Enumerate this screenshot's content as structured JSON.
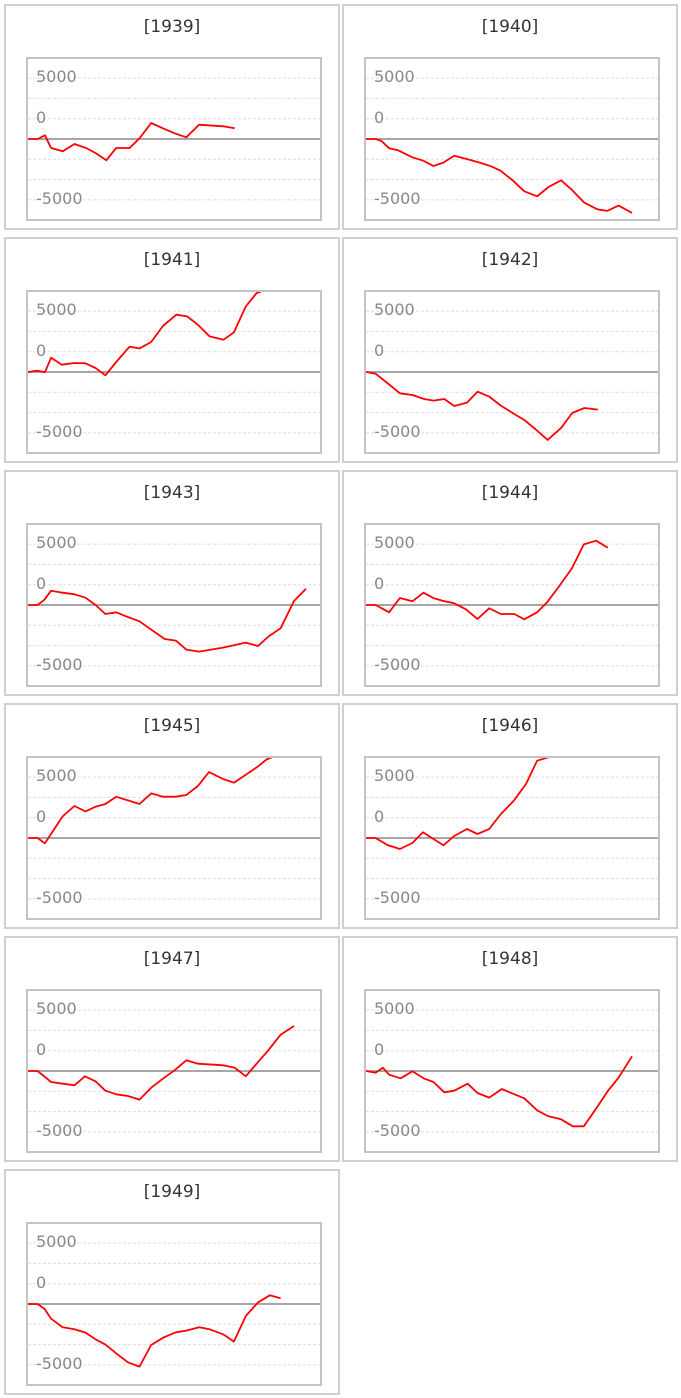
{
  "colors": {
    "line": "#ff0000",
    "zero_line": "#888888",
    "grid": "#dddddd",
    "frame": "#c4c4c4"
  },
  "chart_data": {
    "type": "line",
    "layout": "small-multiples, 2 columns",
    "y_tick_labels": [
      "5000",
      "0",
      "-5000"
    ],
    "ylim": [
      -6560,
      6560
    ],
    "xlim": [
      0,
      100
    ],
    "grid": true,
    "panels": [
      {
        "title": "[1939]",
        "points": [
          [
            0,
            0
          ],
          [
            3.3,
            0
          ],
          [
            5.8,
            300
          ],
          [
            7.9,
            -737
          ],
          [
            11.9,
            -1010
          ],
          [
            15.9,
            -410
          ],
          [
            19.9,
            -737
          ],
          [
            23.1,
            -1147
          ],
          [
            26.8,
            -1747
          ],
          [
            30.2,
            -737
          ],
          [
            34.8,
            -737
          ],
          [
            38.2,
            55
          ],
          [
            42.2,
            1310
          ],
          [
            46.2,
            874
          ],
          [
            50.2,
            464
          ],
          [
            54.2,
            137
          ],
          [
            58.6,
            1174
          ],
          [
            66.8,
            1037
          ],
          [
            70.8,
            874
          ]
        ]
      },
      {
        "title": "[1940]",
        "points": [
          [
            0,
            0
          ],
          [
            3.3,
            0
          ],
          [
            5.3,
            -164
          ],
          [
            7.9,
            -764
          ],
          [
            11,
            -928
          ],
          [
            15.9,
            -1502
          ],
          [
            19.6,
            -1775
          ],
          [
            23.1,
            -2211
          ],
          [
            26.5,
            -1938
          ],
          [
            30.2,
            -1365
          ],
          [
            34.8,
            -1665
          ],
          [
            39.4,
            -1966
          ],
          [
            42.8,
            -2239
          ],
          [
            46,
            -2594
          ],
          [
            50.2,
            -3385
          ],
          [
            54.2,
            -4286
          ],
          [
            58.6,
            -4696
          ],
          [
            62.5,
            -3931
          ],
          [
            66.8,
            -3385
          ],
          [
            70.3,
            -4122
          ],
          [
            74.6,
            -5187
          ],
          [
            79.2,
            -5760
          ],
          [
            82.6,
            -5897
          ],
          [
            86.5,
            -5460
          ],
          [
            91.1,
            -6061
          ]
        ]
      },
      {
        "title": "[1941]",
        "points": [
          [
            0,
            0
          ],
          [
            3.3,
            109
          ],
          [
            5.8,
            -27
          ],
          [
            7.9,
            1174
          ],
          [
            11.6,
            600
          ],
          [
            15.9,
            737
          ],
          [
            19.7,
            710
          ],
          [
            23.1,
            328
          ],
          [
            26.5,
            -273
          ],
          [
            30.2,
            819
          ],
          [
            34.8,
            2075
          ],
          [
            38.2,
            1938
          ],
          [
            42.2,
            2457
          ],
          [
            46.2,
            3767
          ],
          [
            50.8,
            4696
          ],
          [
            54.5,
            4559
          ],
          [
            58.2,
            3877
          ],
          [
            62.2,
            2921
          ],
          [
            67,
            2648
          ],
          [
            70.5,
            3249
          ],
          [
            74.6,
            5378
          ],
          [
            78.3,
            6470
          ],
          [
            82.8,
            6880
          ],
          [
            87,
            7016
          ]
        ]
      },
      {
        "title": "[1942]",
        "points": [
          [
            0,
            0
          ],
          [
            3.3,
            -137
          ],
          [
            7.3,
            -901
          ],
          [
            11.6,
            -1747
          ],
          [
            15.9,
            -1884
          ],
          [
            19.9,
            -2211
          ],
          [
            23.1,
            -2348
          ],
          [
            26.8,
            -2211
          ],
          [
            30.2,
            -2785
          ],
          [
            34.6,
            -2512
          ],
          [
            38.2,
            -1611
          ],
          [
            42.2,
            -2020
          ],
          [
            46.2,
            -2757
          ],
          [
            50.2,
            -3358
          ],
          [
            54.2,
            -3931
          ],
          [
            58.2,
            -4723
          ],
          [
            62.2,
            -5569
          ],
          [
            66.8,
            -4586
          ],
          [
            70.6,
            -3358
          ],
          [
            74.8,
            -2948
          ],
          [
            79.4,
            -3085
          ]
        ]
      },
      {
        "title": "[1943]",
        "points": [
          [
            0,
            0
          ],
          [
            3.3,
            0
          ],
          [
            5.6,
            437
          ],
          [
            7.9,
            1174
          ],
          [
            11.9,
            1010
          ],
          [
            15.9,
            874
          ],
          [
            19.7,
            601
          ],
          [
            23.1,
            0
          ],
          [
            26.5,
            -737
          ],
          [
            30.2,
            -601
          ],
          [
            34.2,
            -983
          ],
          [
            38.2,
            -1338
          ],
          [
            42.2,
            -2020
          ],
          [
            46.8,
            -2785
          ],
          [
            50.6,
            -2921
          ],
          [
            54.2,
            -3658
          ],
          [
            58.6,
            -3822
          ],
          [
            66.8,
            -3494
          ],
          [
            74.6,
            -3085
          ],
          [
            78.8,
            -3358
          ],
          [
            82.3,
            -2594
          ],
          [
            86.5,
            -1911
          ],
          [
            91.1,
            328
          ],
          [
            95.2,
            1338
          ]
        ]
      },
      {
        "title": "[1944]",
        "points": [
          [
            0,
            0
          ],
          [
            3.3,
            0
          ],
          [
            7.9,
            -601
          ],
          [
            11.6,
            573
          ],
          [
            15.9,
            300
          ],
          [
            19.7,
            1010
          ],
          [
            23.3,
            546
          ],
          [
            26.5,
            328
          ],
          [
            30.2,
            137
          ],
          [
            34.2,
            -355
          ],
          [
            38.2,
            -1147
          ],
          [
            42.2,
            -273
          ],
          [
            46.2,
            -737
          ],
          [
            50.8,
            -737
          ],
          [
            54.2,
            -1174
          ],
          [
            58.6,
            -601
          ],
          [
            62.2,
            273
          ],
          [
            66.2,
            1556
          ],
          [
            70.5,
            3003
          ],
          [
            74.6,
            4969
          ],
          [
            78.8,
            5269
          ],
          [
            82.8,
            4696
          ]
        ]
      },
      {
        "title": "[1945]",
        "points": [
          [
            0,
            0
          ],
          [
            3.3,
            0
          ],
          [
            5.8,
            -437
          ],
          [
            11.9,
            1775
          ],
          [
            15.9,
            2621
          ],
          [
            19.7,
            2184
          ],
          [
            23.1,
            2566
          ],
          [
            26.5,
            2785
          ],
          [
            30.2,
            3385
          ],
          [
            38.2,
            2785
          ],
          [
            42.2,
            3658
          ],
          [
            46.2,
            3385
          ],
          [
            50.6,
            3385
          ],
          [
            54.2,
            3522
          ],
          [
            58.2,
            4259
          ],
          [
            62,
            5405
          ],
          [
            66.8,
            4832
          ],
          [
            70.5,
            4532
          ],
          [
            74.6,
            5187
          ],
          [
            78.3,
            5788
          ],
          [
            81.9,
            6470
          ],
          [
            86.8,
            6880
          ]
        ]
      },
      {
        "title": "[1946]",
        "points": [
          [
            0,
            0
          ],
          [
            3.3,
            0
          ],
          [
            7.3,
            -573
          ],
          [
            11.6,
            -901
          ],
          [
            15.9,
            -410
          ],
          [
            19.5,
            464
          ],
          [
            23.1,
            -82
          ],
          [
            26.5,
            -601
          ],
          [
            30.2,
            164
          ],
          [
            34.6,
            737
          ],
          [
            38.2,
            328
          ],
          [
            42.2,
            737
          ],
          [
            46.2,
            1966
          ],
          [
            50.6,
            3058
          ],
          [
            54.8,
            4423
          ],
          [
            58.6,
            6334
          ],
          [
            62.2,
            6600
          ],
          [
            66.8,
            7016
          ],
          [
            95.2,
            7016
          ]
        ]
      },
      {
        "title": "[1947]",
        "points": [
          [
            0,
            0
          ],
          [
            3.3,
            0
          ],
          [
            7.9,
            -901
          ],
          [
            11.9,
            -1037
          ],
          [
            15.9,
            -1174
          ],
          [
            19.5,
            -437
          ],
          [
            23.1,
            -846
          ],
          [
            26.5,
            -1611
          ],
          [
            30.2,
            -1911
          ],
          [
            34.2,
            -2048
          ],
          [
            38.2,
            -2348
          ],
          [
            42.2,
            -1365
          ],
          [
            46.2,
            -628
          ],
          [
            50.2,
            55
          ],
          [
            54.2,
            874
          ],
          [
            58.2,
            601
          ],
          [
            66.8,
            464
          ],
          [
            70.8,
            273
          ],
          [
            74.6,
            -437
          ],
          [
            78.3,
            601
          ],
          [
            82.3,
            1693
          ],
          [
            86.5,
            2976
          ],
          [
            91.1,
            3686
          ]
        ]
      },
      {
        "title": "[1948]",
        "points": [
          [
            0,
            0
          ],
          [
            3.3,
            -137
          ],
          [
            5.8,
            273
          ],
          [
            7.9,
            -300
          ],
          [
            11.9,
            -601
          ],
          [
            15.9,
            -27
          ],
          [
            19.7,
            -601
          ],
          [
            23.1,
            -901
          ],
          [
            26.8,
            -1747
          ],
          [
            30.2,
            -1611
          ],
          [
            34.8,
            -1037
          ],
          [
            38.2,
            -1802
          ],
          [
            42.2,
            -2184
          ],
          [
            46.5,
            -1474
          ],
          [
            50.2,
            -1856
          ],
          [
            54.2,
            -2239
          ],
          [
            58.6,
            -3221
          ],
          [
            62.2,
            -3686
          ],
          [
            66.8,
            -3958
          ],
          [
            70.8,
            -4532
          ],
          [
            74.6,
            -4532
          ],
          [
            78.8,
            -3085
          ],
          [
            82.8,
            -1638
          ],
          [
            86.5,
            -546
          ],
          [
            91.1,
            1201
          ]
        ]
      },
      {
        "title": "[1949]",
        "points": [
          [
            0,
            0
          ],
          [
            3.3,
            0
          ],
          [
            5.6,
            -382
          ],
          [
            7.9,
            -1201
          ],
          [
            11.9,
            -1911
          ],
          [
            15.9,
            -2075
          ],
          [
            19.7,
            -2348
          ],
          [
            23.1,
            -2894
          ],
          [
            26.5,
            -3331
          ],
          [
            30.2,
            -4040
          ],
          [
            34.2,
            -4778
          ],
          [
            38.2,
            -5132
          ],
          [
            42.2,
            -3358
          ],
          [
            46.5,
            -2730
          ],
          [
            50.6,
            -2321
          ],
          [
            54.2,
            -2184
          ],
          [
            58.6,
            -1911
          ],
          [
            62.2,
            -2075
          ],
          [
            66.8,
            -2484
          ],
          [
            70.5,
            -3085
          ],
          [
            74.6,
            -983
          ],
          [
            78.8,
            137
          ],
          [
            82.8,
            710
          ],
          [
            86.5,
            464
          ]
        ]
      }
    ]
  }
}
